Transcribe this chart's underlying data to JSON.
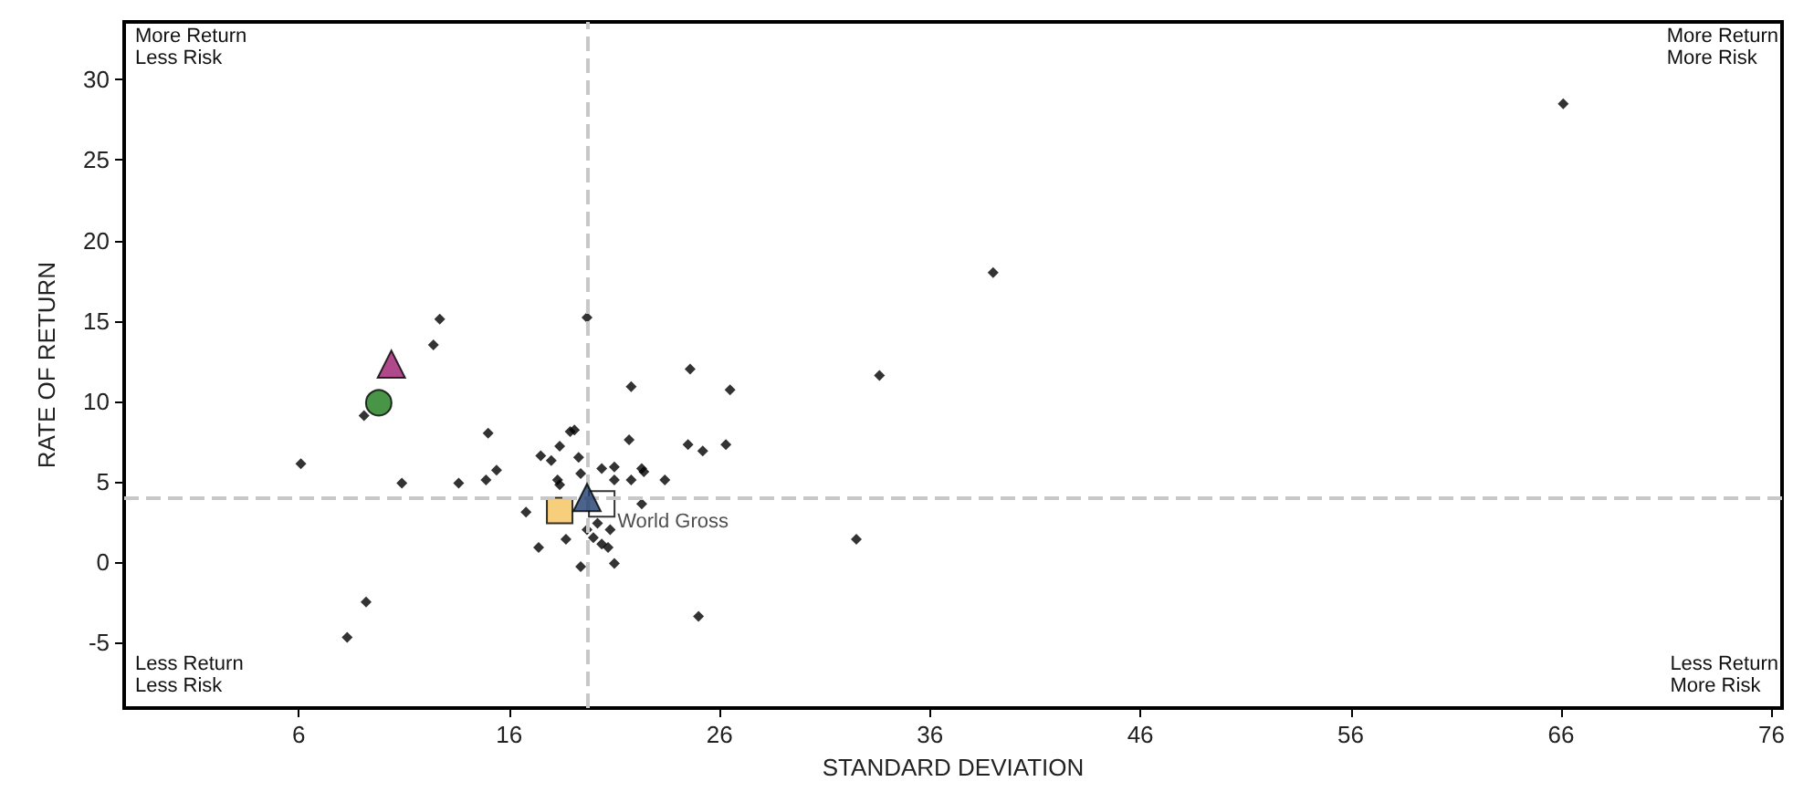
{
  "chart_data": {
    "type": "scatter",
    "xlabel": "STANDARD DEVIATION",
    "ylabel": "RATE OF RETURN",
    "xlim": [
      -2.3,
      76.5
    ],
    "xticks": [
      6,
      16,
      26,
      36,
      46,
      56,
      66,
      76
    ],
    "ylim": [
      -9.1,
      33.6
    ],
    "yticks": [
      -5,
      0,
      5,
      10,
      15,
      20,
      25,
      30
    ],
    "grid": false,
    "legend": false,
    "annotations": [
      "More Return\nLess Risk",
      "More Return\nMore Risk",
      "Less Return\nLess Risk",
      "Less Return\nMore Risk"
    ],
    "ref_lines": [
      {
        "axis": "x",
        "value": 19.7,
        "color": "#c8c8c8",
        "line_style": "dashed"
      },
      {
        "axis": "y",
        "value": 4.0,
        "color": "#c8c8c8",
        "line_style": "dashed"
      }
    ],
    "series": [
      {
        "color": "#000000",
        "marker": "diamond",
        "x": [
          66.1,
          39.0,
          33.6,
          32.5,
          25.0,
          19.7,
          12.7,
          12.4,
          9.1,
          6.1,
          10.9,
          9.2,
          8.3,
          21.8,
          24.6,
          26.5,
          15.0,
          13.6,
          14.9,
          15.4,
          17.5,
          18.0,
          18.4,
          18.9,
          19.1,
          19.3,
          18.3,
          18.4,
          19.4,
          20.4,
          21.0,
          21.0,
          21.7,
          21.8,
          22.3,
          22.4,
          23.4,
          24.5,
          25.2,
          26.3,
          22.3,
          16.8,
          18.7,
          17.4,
          19.4,
          21.0,
          19.7,
          20.0,
          20.4,
          20.7,
          20.2,
          20.8
        ],
        "values": [
          28.5,
          18.0,
          11.6,
          1.4,
          -3.4,
          15.2,
          15.1,
          13.5,
          9.1,
          6.1,
          4.9,
          -2.5,
          -4.7,
          10.9,
          12.0,
          10.7,
          8.0,
          4.9,
          5.1,
          5.7,
          6.6,
          6.3,
          7.2,
          8.1,
          8.2,
          6.5,
          5.1,
          4.8,
          5.5,
          5.8,
          5.9,
          5.1,
          7.6,
          5.1,
          5.8,
          5.6,
          5.1,
          7.3,
          6.9,
          7.3,
          3.6,
          3.1,
          1.4,
          0.9,
          -0.3,
          -0.1,
          2.0,
          1.5,
          1.1,
          0.9,
          2.4,
          2.0
        ]
      },
      {
        "color": "#9b1b6e",
        "marker": "triangle",
        "x": [
          10.4
        ],
        "values": [
          12.3
        ]
      },
      {
        "color": "#1a7a1a",
        "marker": "circle",
        "x": [
          9.8
        ],
        "values": [
          9.9
        ]
      },
      {
        "color": "#f5c25a",
        "marker": "square",
        "x": [
          18.4
        ],
        "values": [
          3.2
        ]
      },
      {
        "color": "#1f3d6e",
        "marker": "triangle",
        "x": [
          19.7
        ],
        "values": [
          4.0
        ]
      },
      {
        "name": "World Gross",
        "color": "#ffffff",
        "marker": "square",
        "x": [
          20.4
        ],
        "values": [
          3.6
        ]
      }
    ]
  }
}
